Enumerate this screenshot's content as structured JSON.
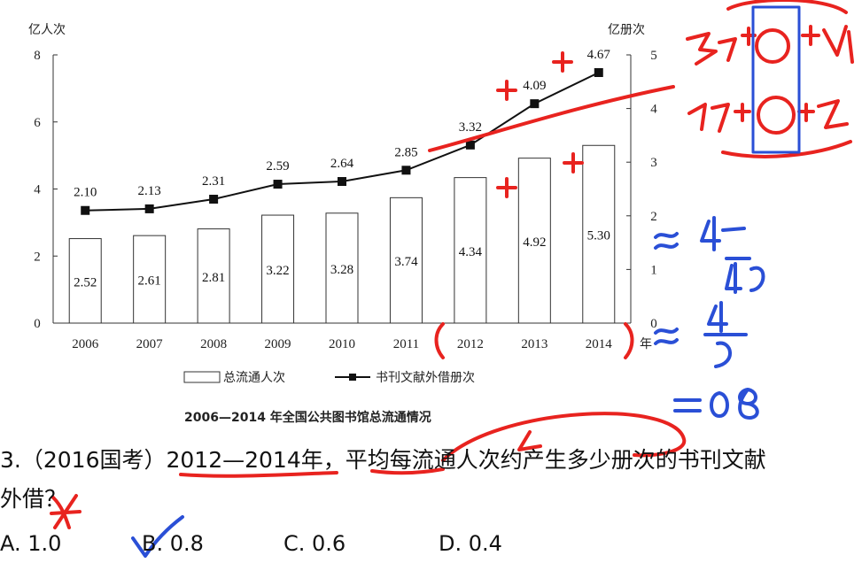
{
  "chart_data": {
    "type": "bar",
    "title": "2006—2014 年全国公共图书馆总流通情况",
    "categories": [
      "2006",
      "2007",
      "2008",
      "2009",
      "2010",
      "2011",
      "2012",
      "2013",
      "2014"
    ],
    "x_unit": "年",
    "y_left": {
      "label": "亿人次",
      "ylim": [
        0,
        8
      ],
      "ticks": [
        "0",
        "2",
        "4",
        "6",
        "8"
      ]
    },
    "y_right": {
      "label": "亿册次",
      "ylim": [
        0,
        5
      ],
      "ticks": [
        "0",
        "1",
        "2",
        "3",
        "4",
        "5"
      ]
    },
    "series": [
      {
        "name": "总流通人次",
        "type": "bar",
        "axis": "left",
        "values": [
          2.52,
          2.61,
          2.81,
          3.22,
          3.28,
          3.74,
          4.34,
          4.92,
          5.3
        ],
        "labels": [
          "2.52",
          "2.61",
          "2.81",
          "3.22",
          "3.28",
          "3.74",
          "4.34",
          "4.92",
          "5.30"
        ]
      },
      {
        "name": "书刊文献外借册次",
        "type": "line",
        "axis": "right",
        "values": [
          2.1,
          2.13,
          2.31,
          2.59,
          2.64,
          2.85,
          3.32,
          4.09,
          4.67
        ],
        "labels": [
          "2.10",
          "2.13",
          "2.31",
          "2.59",
          "2.64",
          "2.85",
          "3.32",
          "4.09",
          "4.67"
        ]
      }
    ],
    "legend_position": "bottom",
    "grid": false
  },
  "annotations": {
    "top_right_sum": "3.32+4.09+4.67",
    "middle_right_sum": "4.34+4.92+5.30",
    "approx_fraction": "≈ 4.49/4.9... ≈ 4/5 = 0.8"
  },
  "question": {
    "number": "3.",
    "source": "（2016国考）",
    "period": "2012—2014年",
    "sep": "，",
    "key": "平均每",
    "rest_line1": "流通人次约产生多少册次的书刊文献",
    "line2": "外借？",
    "options": [
      "A. 1.0",
      "B. 0.8",
      "C. 0.6",
      "D. 0.4"
    ]
  }
}
